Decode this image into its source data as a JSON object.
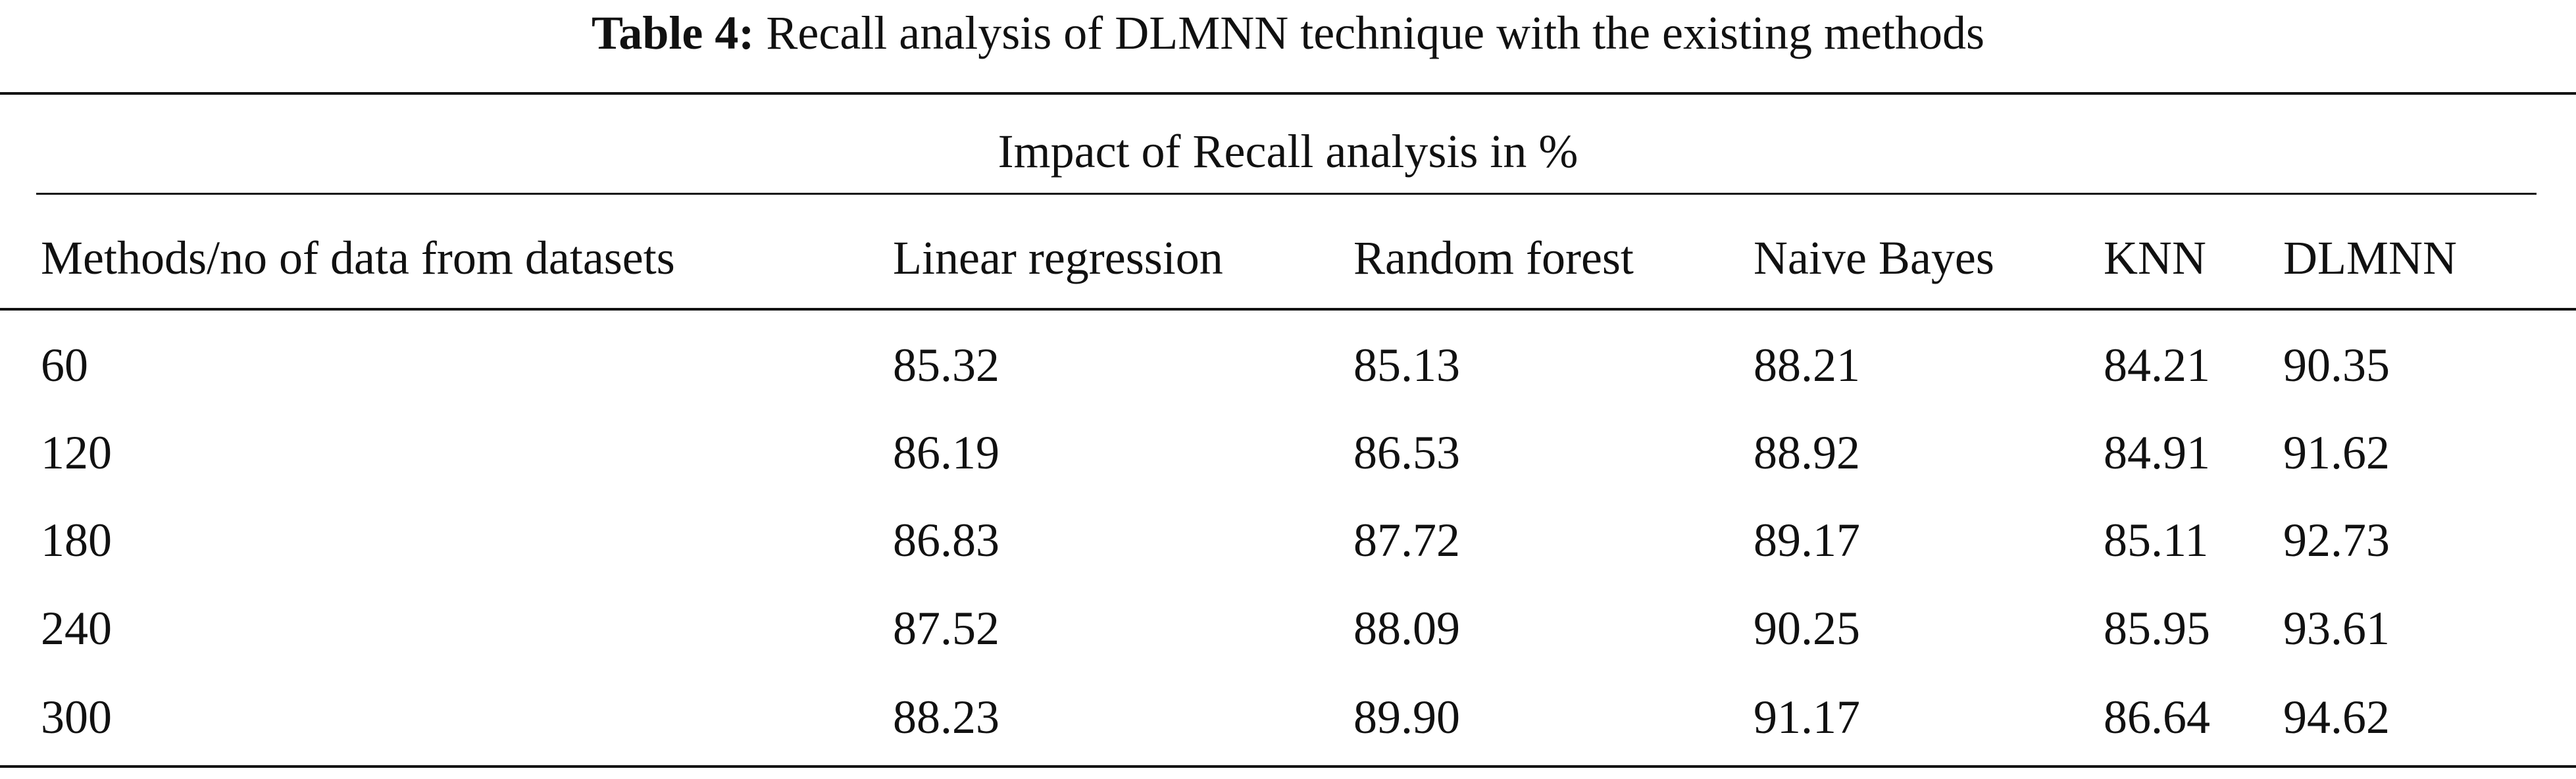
{
  "caption": {
    "label": "Table 4:",
    "text": "Recall analysis of DLMNN technique with the existing methods"
  },
  "table": {
    "group_header": "Impact of Recall analysis in %",
    "headers": [
      "Methods/no of data from datasets",
      "Linear regression",
      "Random forest",
      "Naive Bayes",
      "KNN",
      "DLMNN"
    ],
    "rows": [
      [
        "60",
        "85.32",
        "85.13",
        "88.21",
        "84.21",
        "90.35"
      ],
      [
        "120",
        "86.19",
        "86.53",
        "88.92",
        "84.91",
        "91.62"
      ],
      [
        "180",
        "86.83",
        "87.72",
        "89.17",
        "85.11",
        "92.73"
      ],
      [
        "240",
        "87.52",
        "88.09",
        "90.25",
        "85.95",
        "93.61"
      ],
      [
        "300",
        "88.23",
        "89.90",
        "91.17",
        "86.64",
        "94.62"
      ]
    ]
  }
}
